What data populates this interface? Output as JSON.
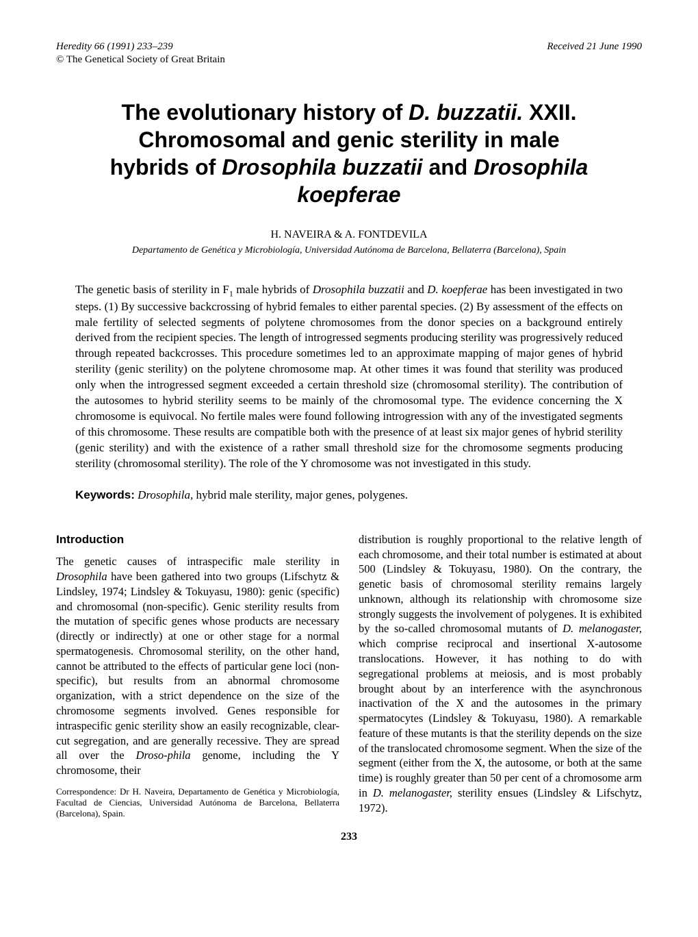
{
  "header": {
    "journal_ref": "Heredity 66 (1991) 233–239",
    "received": "Received 21 June 1990",
    "copyright": "© The Genetical Society of Great Britain"
  },
  "title": {
    "line1_pre": "The evolutionary history of ",
    "line1_italic": "D. buzzatii.",
    "line1_post": " XXII.",
    "line2": "Chromosomal and genic sterility in male",
    "line3_pre": "hybrids of ",
    "line3_italic1": "Drosophila buzzatii",
    "line3_mid": " and ",
    "line3_italic2": "Drosophila",
    "line4_italic": "koepferae"
  },
  "authors": "H. NAVEIRA & A. FONTDEVILA",
  "affiliation": "Departamento de Genética y Microbiología, Universidad Autónoma de Barcelona, Bellaterra (Barcelona), Spain",
  "abstract": {
    "pre1": "The genetic basis of sterility in F",
    "sub1": "1",
    "mid1": " male hybrids of ",
    "italic1": "Drosophila buzzatii",
    "mid2": " and ",
    "italic2": "D. koepferae",
    "post1": " has been investigated in two steps. (1) By successive backcrossing of hybrid females to either parental species. (2) By assessment of the effects on male fertility of selected segments of polytene chromosomes from the donor species on a background entirely derived from the recipient species. The length of introgressed segments producing sterility was progressively reduced through repeated backcrosses. This procedure sometimes led to an approximate mapping of major genes of hybrid sterility (genic sterility) on the polytene chromosome map. At other times it was found that sterility was produced only when the introgressed segment exceeded a certain threshold size (chromosomal sterility). The contribution of the autosomes to hybrid sterility seems to be mainly of the chromosomal type. The evidence concerning the X chromosome is equivocal. No fertile males were found following introgression with any of the investigated segments of this chromosome. These results are compatible both with the presence of at least six major genes of hybrid sterility (genic sterility) and with the existence of a rather small threshold size for the chromosome segments producing sterility (chromosomal sterility). The role of the Y chromosome was not investigated in this study."
  },
  "keywords": {
    "label": "Keywords:",
    "italic": "Drosophila,",
    "rest": " hybrid male sterility, major genes, polygenes."
  },
  "introduction": {
    "heading": "Introduction",
    "col1_p1_pre": "The genetic causes of intraspecific male sterility in ",
    "col1_p1_italic1": "Drosophila",
    "col1_p1_mid1": " have been gathered into two groups (Lifschytz & Lindsley, 1974; Lindsley & Tokuyasu, 1980): genic (specific) and chromosomal (non-specific). Genic sterility results from the mutation of specific genes whose products are necessary (directly or indirectly) at one or other stage for a normal spermatogenesis. Chromosomal sterility, on the other hand, cannot be attributed to the effects of particular gene loci (non-specific), but results from an abnormal chromosome organization, with a strict dependence on the size of the chromosome segments involved. Genes responsible for intraspecific genic sterility show an easily recognizable, clear-cut segregation, and are generally recessive. They are spread all over the ",
    "col1_p1_italic2": "Droso-phila",
    "col1_p1_post": " genome, including the Y chromosome, their",
    "col2_pre": "distribution is roughly proportional to the relative length of each chromosome, and their total number is estimated at about 500 (Lindsley & Tokuyasu, 1980). On the contrary, the genetic basis of chromosomal sterility remains largely unknown, although its relationship with chromosome size strongly suggests the involvement of polygenes. It is exhibited by the so-called chromosomal mutants of ",
    "col2_italic1": "D. melanogaster,",
    "col2_mid1": " which comprise reciprocal and insertional X-autosome translocations. However, it has nothing to do with segregational problems at meiosis, and is most probably brought about by an interference with the asynchronous inactivation of the X and the autosomes in the primary spermatocytes (Lindsley & Tokuyasu, 1980). A remarkable feature of these mutants is that the sterility depends on the size of the translocated chromosome segment. When the size of the segment (either from the X, the autosome, or both at the same time) is roughly greater than 50 per cent of a chromosome arm in ",
    "col2_italic2": "D. melanogaster,",
    "col2_post": " sterility ensues (Lindsley & Lifschytz, 1972)."
  },
  "correspondence": "Correspondence: Dr H. Naveira, Departamento de Genética y Microbiología, Facultad de Ciencias, Universidad Autónoma de Barcelona, Bellaterra (Barcelona), Spain.",
  "page_number": "233",
  "colors": {
    "background": "#ffffff",
    "text": "#000000"
  },
  "typography": {
    "body_font": "Times New Roman",
    "heading_font": "Arial",
    "title_fontsize": 32,
    "body_fontsize": 16.5,
    "abstract_fontsize": 17,
    "header_fontsize": 15
  }
}
